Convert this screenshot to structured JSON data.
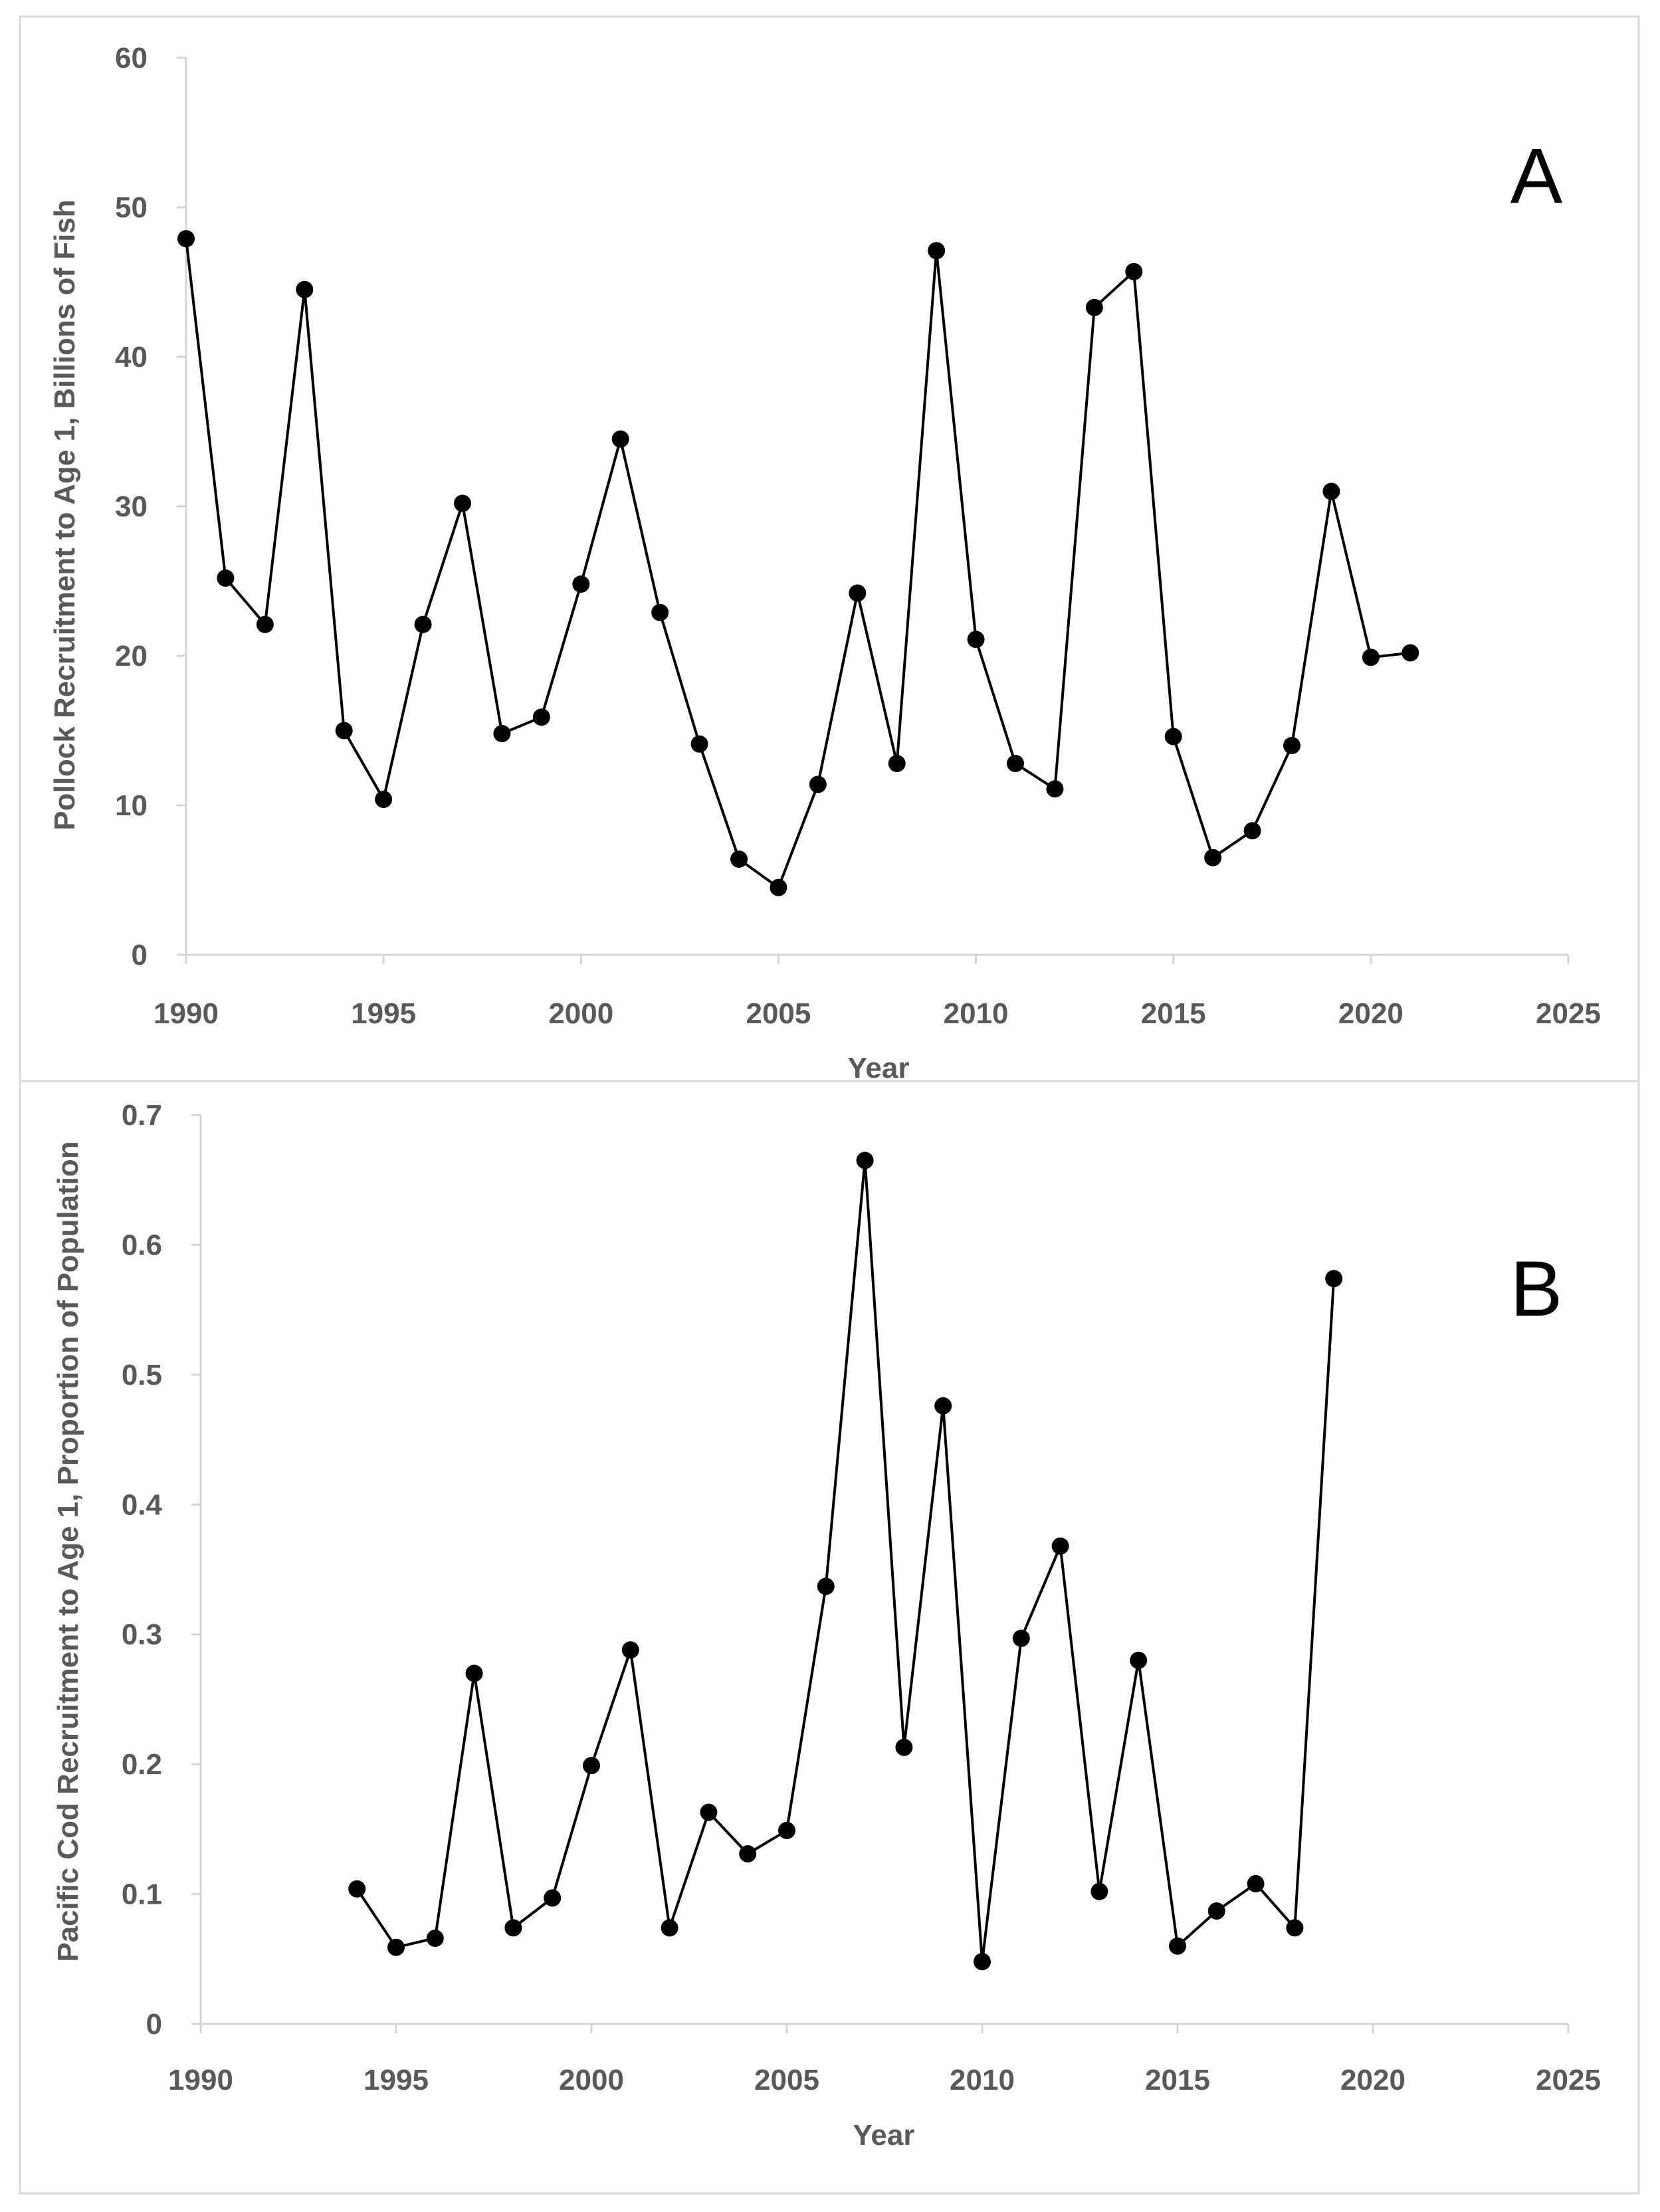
{
  "chart_data": [
    {
      "type": "line",
      "panel_label": "A",
      "title": "",
      "xlabel": "Year",
      "ylabel": "Pollock Recruitment to Age 1, Billions of Fish",
      "xlim": [
        1990,
        2025
      ],
      "ylim": [
        0,
        60
      ],
      "x_ticks": [
        1990,
        1995,
        2000,
        2005,
        2010,
        2015,
        2020,
        2025
      ],
      "y_ticks": [
        0,
        10,
        20,
        30,
        40,
        50,
        60
      ],
      "grid": false,
      "series": [
        {
          "name": "Pollock",
          "x": [
            1990,
            1991,
            1992,
            1993,
            1994,
            1995,
            1996,
            1997,
            1998,
            1999,
            2000,
            2001,
            2002,
            2003,
            2004,
            2005,
            2006,
            2007,
            2008,
            2009,
            2010,
            2011,
            2012,
            2013,
            2014,
            2015,
            2016,
            2017,
            2018,
            2019,
            2020,
            2021
          ],
          "values": [
            47.9,
            25.2,
            22.1,
            44.5,
            15.0,
            10.4,
            22.1,
            30.2,
            14.8,
            15.9,
            24.8,
            34.5,
            22.9,
            14.1,
            6.4,
            4.5,
            11.4,
            24.2,
            12.8,
            47.1,
            21.1,
            12.8,
            11.1,
            43.3,
            45.7,
            14.6,
            6.5,
            8.3,
            14.0,
            31.0,
            19.9,
            20.2
          ]
        }
      ]
    },
    {
      "type": "line",
      "panel_label": "B",
      "title": "",
      "xlabel": "Year",
      "ylabel": "Pacific Cod Recruitment to Age 1, Proportion of Population",
      "xlim": [
        1990,
        2025
      ],
      "ylim": [
        0,
        0.7
      ],
      "x_ticks": [
        1990,
        1995,
        2000,
        2005,
        2010,
        2015,
        2020,
        2025
      ],
      "y_ticks": [
        0,
        0.1,
        0.2,
        0.3,
        0.4,
        0.5,
        0.6,
        0.7
      ],
      "grid": false,
      "series": [
        {
          "name": "Pacific Cod",
          "x": [
            1994,
            1995,
            1996,
            1997,
            1998,
            1999,
            2000,
            2001,
            2002,
            2003,
            2004,
            2005,
            2006,
            2007,
            2008,
            2009,
            2010,
            2011,
            2012,
            2013,
            2014,
            2015,
            2016,
            2017,
            2018,
            2019
          ],
          "values": [
            0.104,
            0.059,
            0.066,
            0.27,
            0.074,
            0.097,
            0.199,
            0.288,
            0.074,
            0.163,
            0.131,
            0.149,
            0.337,
            0.665,
            0.213,
            0.476,
            0.048,
            0.297,
            0.368,
            0.102,
            0.28,
            0.06,
            0.087,
            0.108,
            0.074,
            0.574
          ]
        }
      ]
    }
  ]
}
